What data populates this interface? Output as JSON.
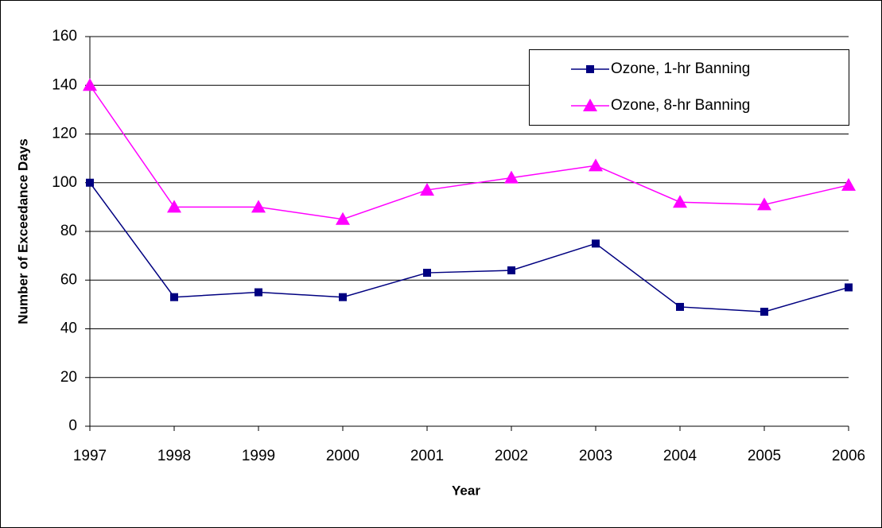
{
  "chart_data": {
    "type": "line",
    "x_label": "Year",
    "y_label": "Number of Exceedance Days",
    "x": [
      1997,
      1998,
      1999,
      2000,
      2001,
      2002,
      2003,
      2004,
      2005,
      2006
    ],
    "xlim": [
      1997,
      2006
    ],
    "xticks": [
      1997,
      1998,
      1999,
      2000,
      2001,
      2002,
      2003,
      2004,
      2005,
      2006
    ],
    "ylim": [
      0,
      160
    ],
    "yticks": [
      0,
      20,
      40,
      60,
      80,
      100,
      120,
      140,
      160
    ],
    "grid": true,
    "legend": "top-right",
    "series": [
      {
        "name": "Ozone, 1-hr Banning",
        "color": "#000080",
        "marker": "square",
        "values": [
          100,
          53,
          55,
          53,
          63,
          64,
          75,
          49,
          47,
          57
        ]
      },
      {
        "name": "Ozone, 8-hr Banning",
        "color": "#ff00ff",
        "marker": "triangle",
        "values": [
          140,
          90,
          90,
          85,
          97,
          102,
          107,
          92,
          91,
          99
        ]
      }
    ]
  }
}
